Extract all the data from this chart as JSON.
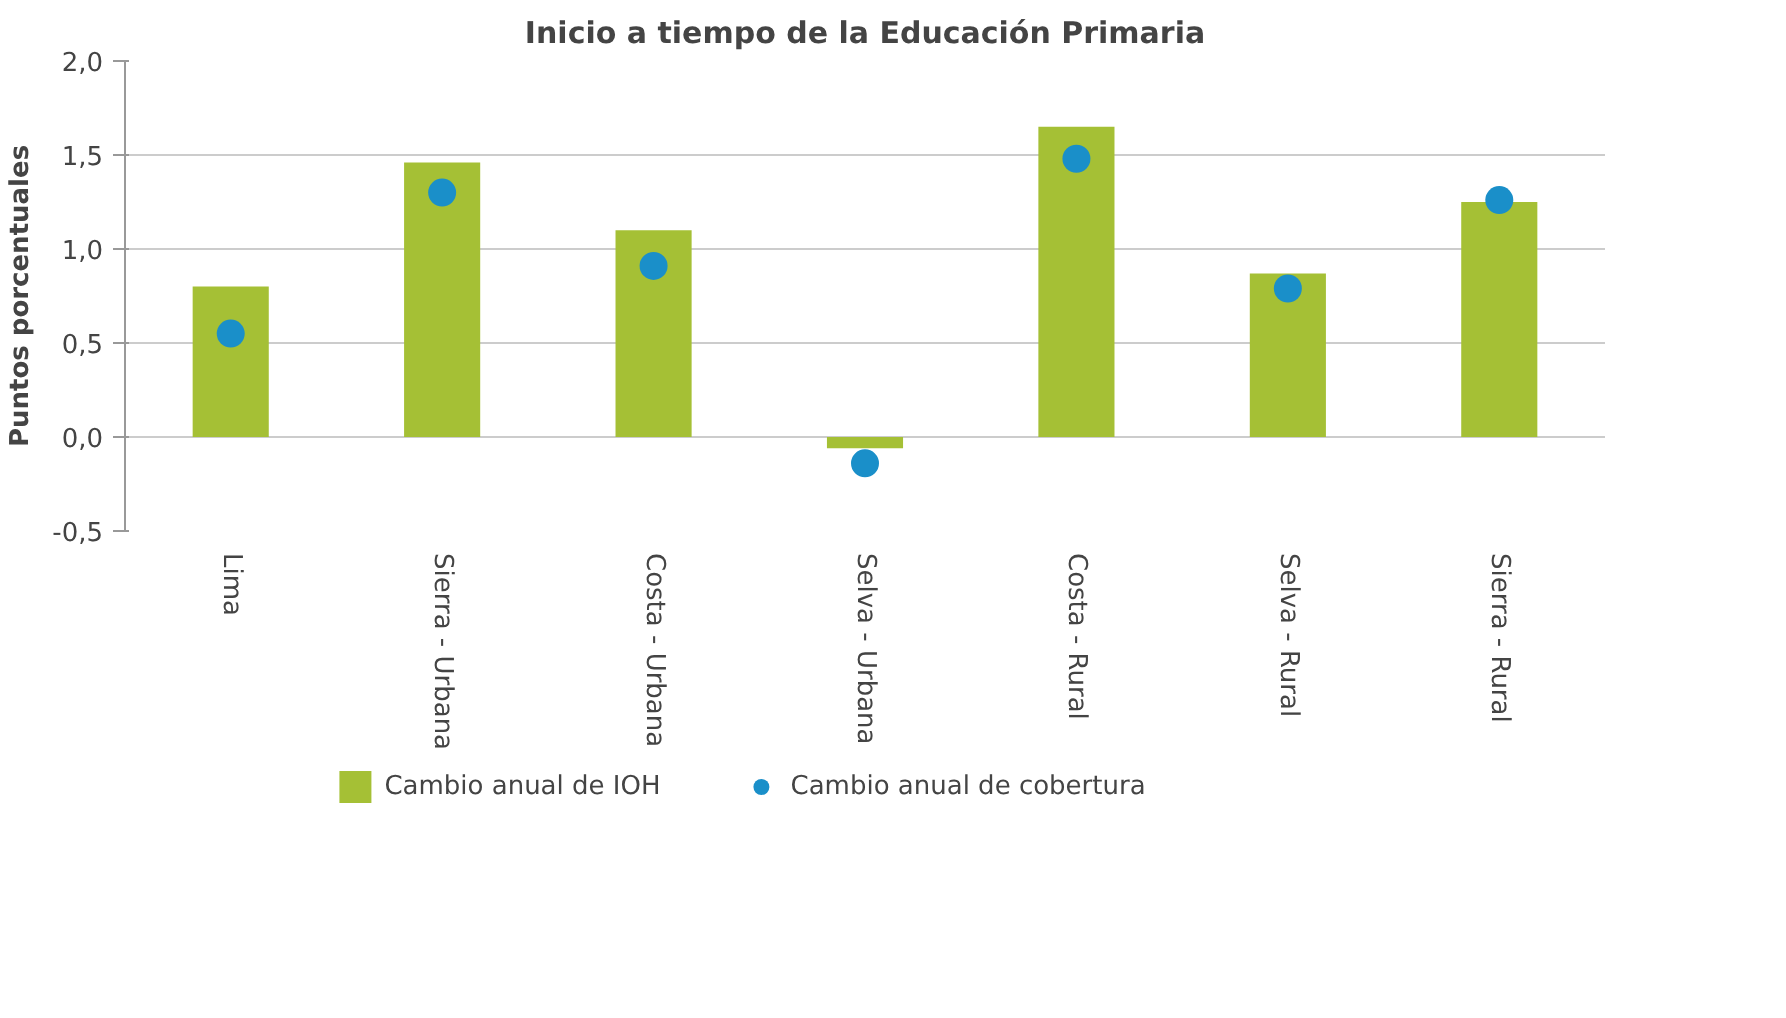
{
  "chart_data": {
    "type": "bar",
    "title": "Inicio a tiempo de la Educación Primaria",
    "ylabel": "Puntos porcentuales",
    "categories": [
      "Lima",
      "Sierra - Urbana",
      "Costa - Urbana",
      "Selva - Urbana",
      "Costa - Rural",
      "Selva - Rural",
      "Sierra - Rural"
    ],
    "series": [
      {
        "name": "Cambio anual de IOH",
        "color": "#a5c035",
        "values": [
          0.8,
          1.46,
          1.1,
          -0.06,
          1.65,
          0.87,
          1.25
        ]
      },
      {
        "name": "Cambio anual de cobertura",
        "color": "#1a8fc9",
        "type": "scatter",
        "marker": "circle",
        "values": [
          0.55,
          1.3,
          0.91,
          -0.14,
          1.48,
          0.79,
          1.26
        ]
      }
    ],
    "ylim": [
      -0.5,
      2.0
    ],
    "yticks": [
      {
        "value": -0.5,
        "label": "-0,5"
      },
      {
        "value": 0.0,
        "label": "0,0"
      },
      {
        "value": 0.5,
        "label": "0,5"
      },
      {
        "value": 1.0,
        "label": "1,0"
      },
      {
        "value": 1.5,
        "label": "1,5"
      },
      {
        "value": 2.0,
        "label": "2,0"
      }
    ],
    "grid": "y",
    "legend": "bottom"
  }
}
